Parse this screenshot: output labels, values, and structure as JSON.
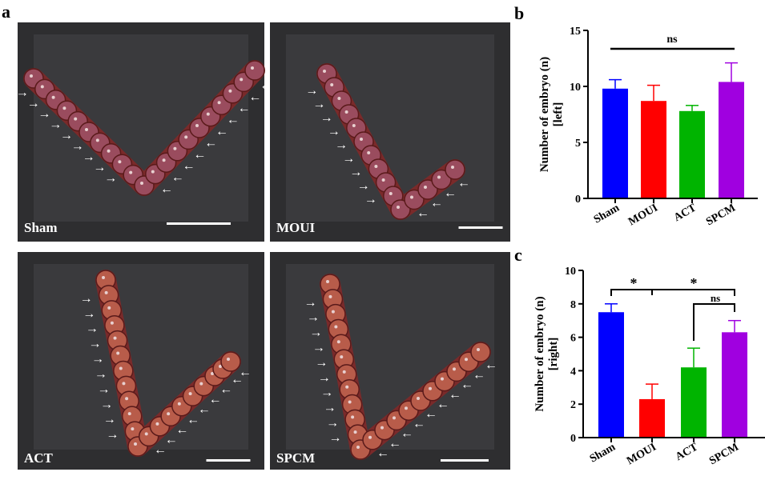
{
  "panel_labels": {
    "a": "a",
    "b": "b",
    "c": "c"
  },
  "photos": [
    {
      "label": "Sham"
    },
    {
      "label": "MOUI"
    },
    {
      "label": "ACT"
    },
    {
      "label": "SPCM"
    }
  ],
  "colors": {
    "Sham": "#0000ff",
    "MOUI": "#ff0000",
    "ACT": "#00b400",
    "SPCM": "#a000e0"
  },
  "chart_data": [
    {
      "type": "bar",
      "panel": "b",
      "categories": [
        "Sham",
        "MOUI",
        "ACT",
        "SPCM"
      ],
      "values": [
        9.8,
        8.7,
        7.8,
        10.4
      ],
      "error_upper": [
        10.6,
        10.1,
        8.3,
        12.1
      ],
      "ylabel": "Number of embryo (n) [left]",
      "ylabel_line1": "Number of embryo (n)",
      "ylabel_line2": "[left]",
      "ylim": [
        0,
        15
      ],
      "yticks": [
        "0",
        "5",
        "10",
        "15"
      ],
      "significance": [
        {
          "from": "Sham",
          "to": "SPCM",
          "label": "ns"
        }
      ]
    },
    {
      "type": "bar",
      "panel": "c",
      "categories": [
        "Sham",
        "MOUI",
        "ACT",
        "SPCM"
      ],
      "values": [
        7.5,
        2.3,
        4.2,
        6.3
      ],
      "error_upper": [
        8.0,
        3.2,
        5.35,
        7.0
      ],
      "ylabel": "Number of embryo (n) [right]",
      "ylabel_line1": "Number of embryo (n)",
      "ylabel_line2": "[right]",
      "ylim": [
        0,
        10
      ],
      "yticks": [
        "0",
        "2",
        "4",
        "6",
        "8",
        "10"
      ],
      "significance": [
        {
          "from": "Sham",
          "to": "MOUI",
          "label": "*"
        },
        {
          "from": "MOUI",
          "to": "SPCM",
          "label": "*"
        },
        {
          "from": "ACT",
          "to": "SPCM",
          "label": "ns"
        }
      ]
    }
  ]
}
